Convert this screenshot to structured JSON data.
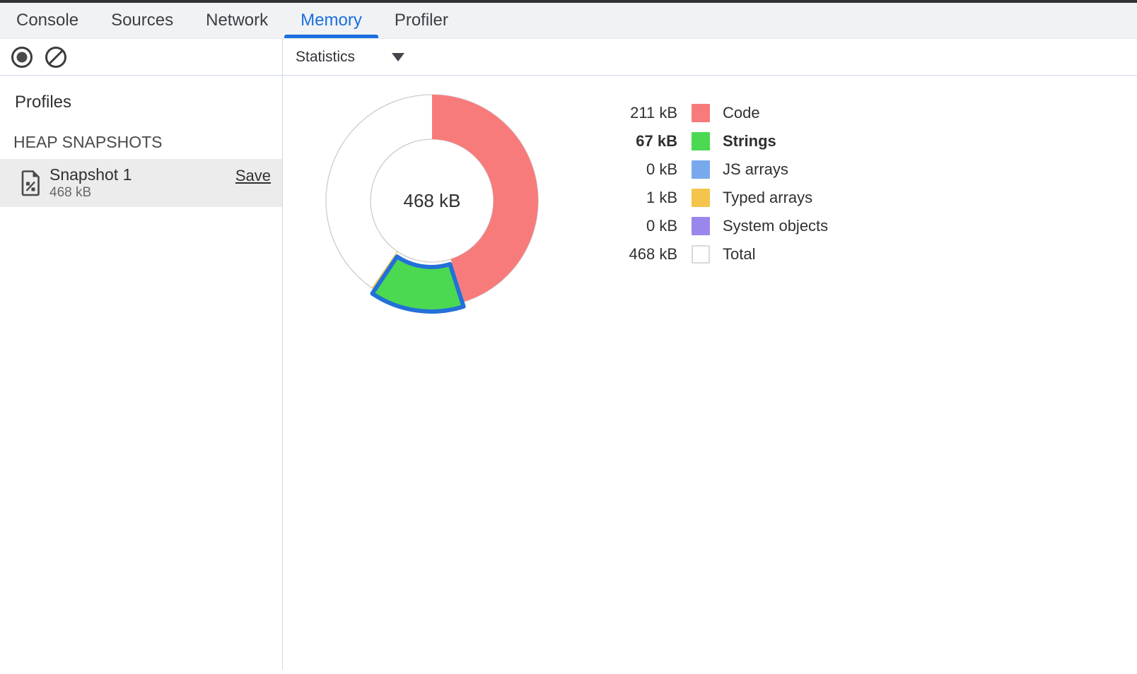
{
  "tabs": {
    "items": [
      {
        "label": "Console",
        "active": false
      },
      {
        "label": "Sources",
        "active": false
      },
      {
        "label": "Network",
        "active": false
      },
      {
        "label": "Memory",
        "active": true
      },
      {
        "label": "Profiler",
        "active": false
      }
    ],
    "active_color": "#1a6fe0"
  },
  "toolbar": {
    "record_icon": "record-icon",
    "clear_icon": "clear-icon",
    "view_select_label": "Statistics"
  },
  "sidebar": {
    "profiles_heading": "Profiles",
    "section_heading": "HEAP SNAPSHOTS",
    "snapshot": {
      "title": "Snapshot 1",
      "size": "468 kB",
      "save_label": "Save",
      "selected": true
    }
  },
  "chart_data": {
    "type": "pie",
    "variant": "donut",
    "center_label": "468 kB",
    "total_kb": 468,
    "series": [
      {
        "name": "Code",
        "value_kb": 211,
        "label": "211 kB",
        "color": "#f87b7b",
        "selected": false,
        "is_total": false
      },
      {
        "name": "Strings",
        "value_kb": 67,
        "label": "67 kB",
        "color": "#4bd952",
        "selected": true,
        "is_total": false
      },
      {
        "name": "JS arrays",
        "value_kb": 0,
        "label": "0 kB",
        "color": "#79a9ed",
        "selected": false,
        "is_total": false
      },
      {
        "name": "Typed arrays",
        "value_kb": 1,
        "label": "1 kB",
        "color": "#f4c44c",
        "selected": false,
        "is_total": false
      },
      {
        "name": "System objects",
        "value_kb": 0,
        "label": "0 kB",
        "color": "#9b87ec",
        "selected": false,
        "is_total": false
      },
      {
        "name": "Total",
        "value_kb": 468,
        "label": "468 kB",
        "color": "#ffffff",
        "selected": false,
        "is_total": true
      }
    ],
    "selected_stroke": "#2270d8",
    "ring_outline": "#cccccc",
    "outer_radius": 150,
    "inner_radius": 87,
    "start_angle_deg": 0,
    "clockwise": true,
    "legend_position": "right"
  }
}
